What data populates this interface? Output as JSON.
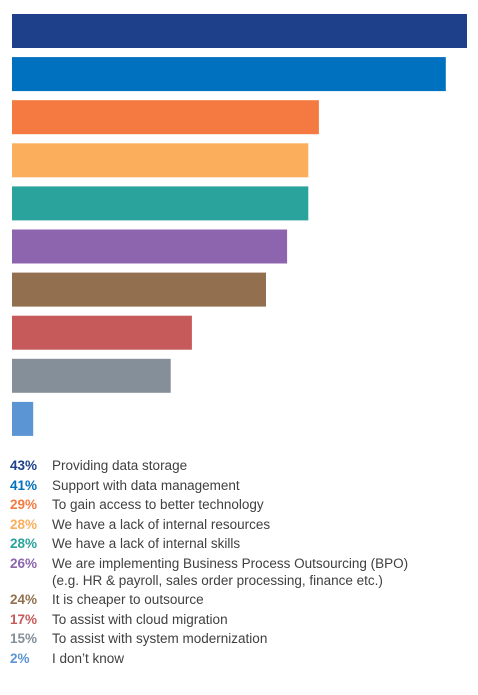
{
  "chart_data": {
    "type": "bar",
    "orientation": "horizontal",
    "categories": [
      "Providing data storage",
      "Support with data management",
      "To gain access to better technology",
      "We have a lack of internal resources",
      "We have a lack of internal skills",
      "We are implementing Business Process Outsourcing (BPO)\n(e.g. HR & payroll, sales order processing, finance etc.)",
      "It is cheaper to outsource",
      "To assist with cloud migration",
      "To assist with system modernization",
      "I don’t know"
    ],
    "values": [
      43,
      41,
      29,
      28,
      28,
      26,
      24,
      17,
      15,
      2
    ],
    "value_labels": [
      "43%",
      "41%",
      "29%",
      "28%",
      "28%",
      "26%",
      "24%",
      "17%",
      "15%",
      "2%"
    ],
    "colors": [
      "#1e3f8a",
      "#0071bf",
      "#f47a42",
      "#fbae5c",
      "#2aa39c",
      "#8c65ae",
      "#92704f",
      "#c65a5a",
      "#858f9a",
      "#5b95d3"
    ],
    "title": "",
    "xlabel": "",
    "ylabel": "",
    "xlim": [
      0,
      43
    ],
    "grid": false,
    "legend": "bottom"
  }
}
